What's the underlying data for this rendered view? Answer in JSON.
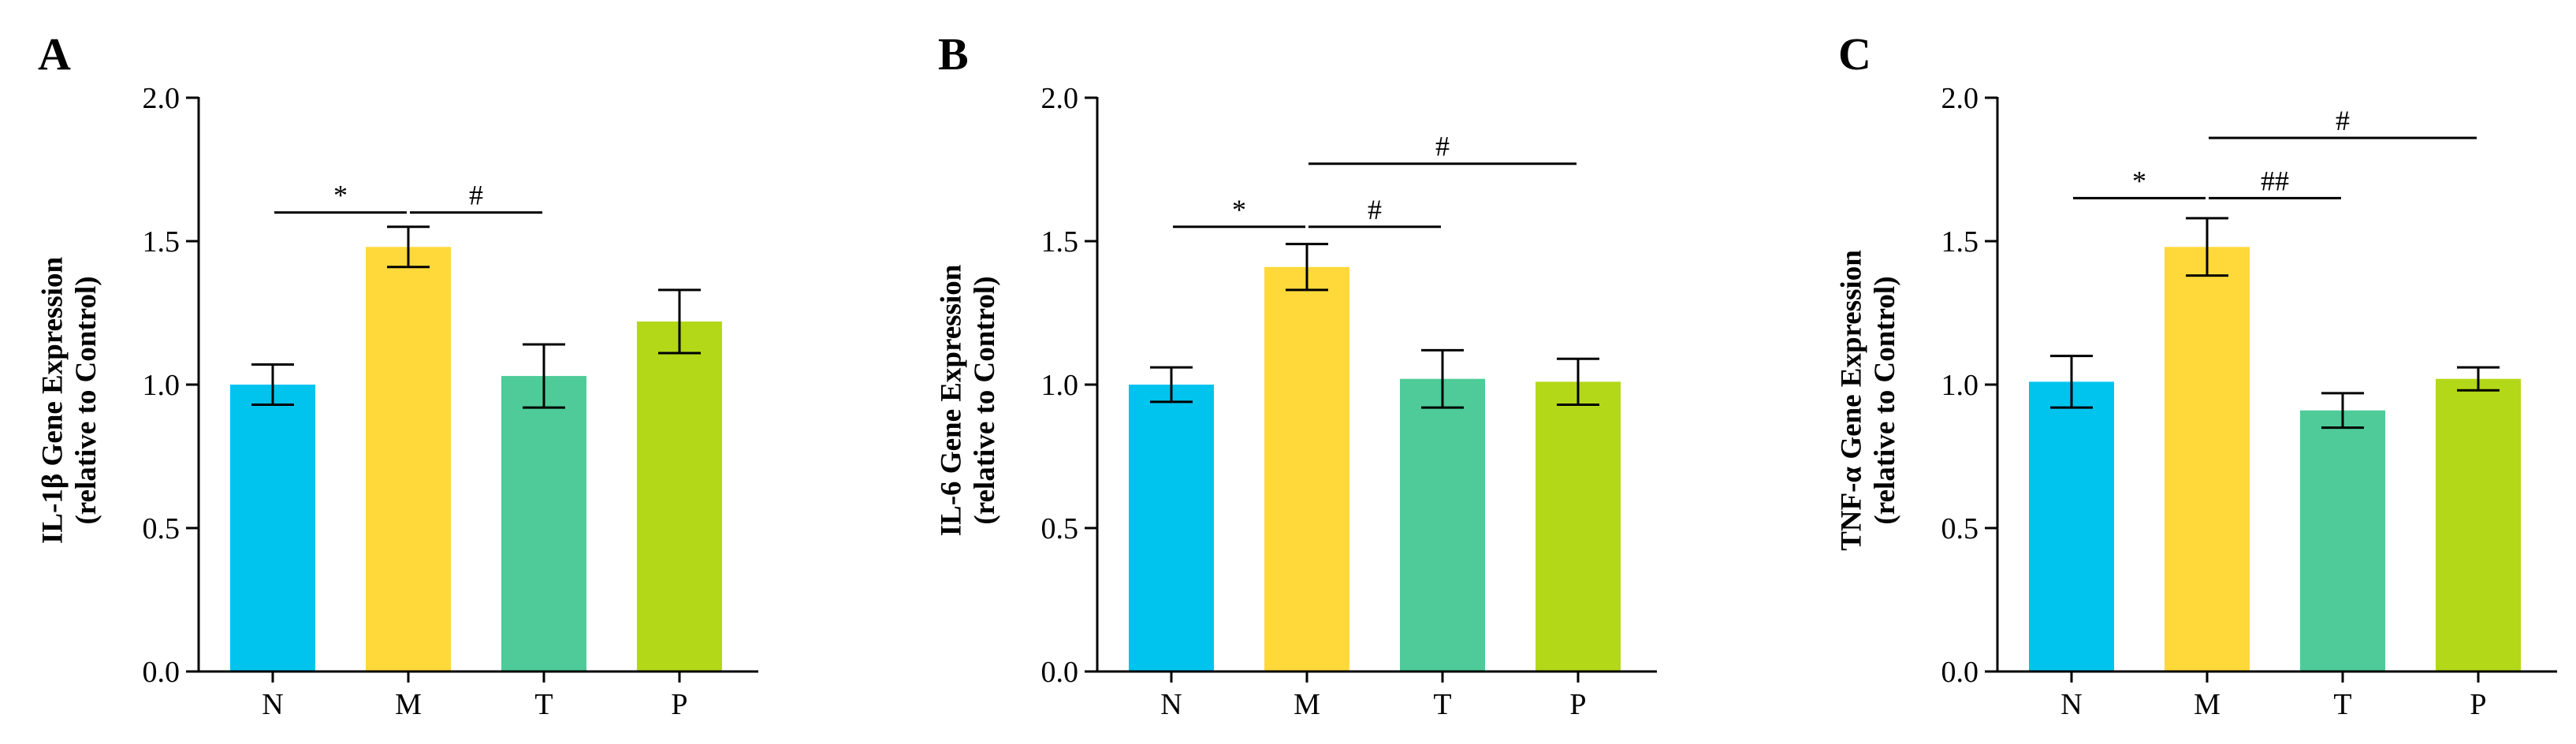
{
  "chart_data": [
    {
      "panel": "A",
      "type": "bar",
      "categories": [
        "N",
        "M",
        "T",
        "P"
      ],
      "values": [
        1.0,
        1.48,
        1.03,
        1.22
      ],
      "errors": [
        0.07,
        0.07,
        0.11,
        0.11
      ],
      "colors": [
        "#00C4EE",
        "#FFD93A",
        "#4ECB98",
        "#B3D818"
      ],
      "ylabel_line1": "IL-1β Gene Expression",
      "ylabel_line2": "(relative to Control)",
      "ylim": [
        0,
        2.0
      ],
      "yticks": [
        "0.0",
        "0.5",
        "1.0",
        "1.5",
        "2.0"
      ],
      "significance": [
        {
          "from": "N",
          "to": "M",
          "label": "*",
          "y": 1.6
        },
        {
          "from": "M",
          "to": "T",
          "label": "#",
          "y": 1.6
        }
      ]
    },
    {
      "panel": "B",
      "type": "bar",
      "categories": [
        "N",
        "M",
        "T",
        "P"
      ],
      "values": [
        1.0,
        1.41,
        1.02,
        1.01
      ],
      "errors": [
        0.06,
        0.08,
        0.1,
        0.08
      ],
      "colors": [
        "#00C4EE",
        "#FFD93A",
        "#4ECB98",
        "#B3D818"
      ],
      "ylabel_line1": "IL-6 Gene Expression",
      "ylabel_line2": "(relative to Control)",
      "ylim": [
        0,
        2.0
      ],
      "yticks": [
        "0.0",
        "0.5",
        "1.0",
        "1.5",
        "2.0"
      ],
      "significance": [
        {
          "from": "N",
          "to": "M",
          "label": "*",
          "y": 1.55
        },
        {
          "from": "M",
          "to": "T",
          "label": "#",
          "y": 1.55
        },
        {
          "from": "M",
          "to": "P",
          "label": "#",
          "y": 1.77
        }
      ]
    },
    {
      "panel": "C",
      "type": "bar",
      "categories": [
        "N",
        "M",
        "T",
        "P"
      ],
      "values": [
        1.01,
        1.48,
        0.91,
        1.02
      ],
      "errors": [
        0.09,
        0.1,
        0.06,
        0.04
      ],
      "colors": [
        "#00C4EE",
        "#FFD93A",
        "#4ECB98",
        "#B3D818"
      ],
      "ylabel_line1": "TNF-α Gene Expression",
      "ylabel_line2": "(relative to Control)",
      "ylim": [
        0,
        2.0
      ],
      "yticks": [
        "0.0",
        "0.5",
        "1.0",
        "1.5",
        "2.0"
      ],
      "significance": [
        {
          "from": "N",
          "to": "M",
          "label": "*",
          "y": 1.65
        },
        {
          "from": "M",
          "to": "T",
          "label": "##",
          "y": 1.65
        },
        {
          "from": "M",
          "to": "P",
          "label": "#",
          "y": 1.86
        }
      ]
    }
  ]
}
